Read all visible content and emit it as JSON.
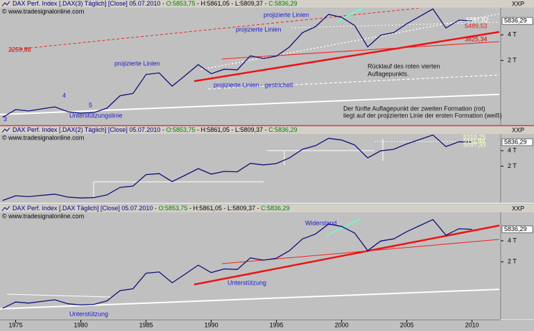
{
  "chart_data": [
    {
      "type": "line",
      "title": "DAX Perf. Index [.DAX(3)  Täglich] [Close] 05.07.2010",
      "quote": [
        "O:5853,75",
        "H:5861,05",
        "L:5809,37",
        "C:5836,29"
      ],
      "subtitle": "© www.tradesignalonline.com",
      "axis_label": "XXP",
      "log_scale": true,
      "x": [
        1974,
        1975,
        1976,
        1977,
        1978,
        1979,
        1980,
        1981,
        1982,
        1983,
        1984,
        1985,
        1986,
        1987,
        1988,
        1989,
        1990,
        1991,
        1992,
        1993,
        1994,
        1995,
        1996,
        1997,
        1998,
        1999,
        2000,
        2001,
        2002,
        2003,
        2004,
        2005,
        2006,
        2007,
        2008,
        2009,
        2010
      ],
      "series": [
        {
          "name": "DAX",
          "color": "#0c0c7a",
          "values": [
            430,
            530,
            510,
            540,
            570,
            500,
            480,
            490,
            550,
            770,
            820,
            1370,
            1430,
            1000,
            1330,
            1790,
            1400,
            1580,
            1550,
            2270,
            2110,
            2250,
            2890,
            4250,
            5000,
            6960,
            6430,
            5160,
            2890,
            3970,
            4260,
            5410,
            6600,
            8070,
            4810,
            5960,
            5836.29
          ]
        }
      ],
      "last_value": {
        "value": 5836.29,
        "label": "5836,29"
      },
      "xlim": [
        1973.8,
        2012.2
      ],
      "ylim": [
        350,
        8200
      ],
      "yticks": [
        {
          "value": 2000,
          "label": "2 T"
        },
        {
          "value": 4000,
          "label": "4 T"
        }
      ],
      "annotations": [
        "projizierte Linien",
        "projizierte Linien",
        "projizierte Linien",
        "2259,88",
        "projizierte Linien - gestrichelt",
        "Unterstützungslinie",
        "3",
        "4",
        "5",
        "5597,82",
        "5489,53",
        "3825,34",
        "Rücklauf des roten vierten",
        "Auflagepunkts.",
        "Der fünfte Auflagepunkt der zweiten Formation (rot)",
        "liegt auf der projizierten Linie der ersten Formation (weiß)"
      ]
    },
    {
      "type": "line",
      "title": "DAX Perf. Index [.DAX(2)  Täglich] [Close] 05.07.2010",
      "quote": [
        "O:5853,75",
        "H:5861,05",
        "L:5809,37",
        "C:5836,29"
      ],
      "subtitle": "© www.tradesignalonline.com",
      "axis_label": "XXP",
      "log_scale": true,
      "x": [
        1974,
        1975,
        1976,
        1977,
        1978,
        1979,
        1980,
        1981,
        1982,
        1983,
        1984,
        1985,
        1986,
        1987,
        1988,
        1989,
        1990,
        1991,
        1992,
        1993,
        1994,
        1995,
        1996,
        1997,
        1998,
        1999,
        2000,
        2001,
        2002,
        2003,
        2004,
        2005,
        2006,
        2007,
        2008,
        2009,
        2010
      ],
      "series": [
        {
          "name": "DAX",
          "color": "#0c0c7a",
          "values": [
            430,
            530,
            510,
            540,
            570,
            500,
            480,
            490,
            550,
            770,
            820,
            1370,
            1430,
            1000,
            1330,
            1790,
            1400,
            1580,
            1550,
            2270,
            2110,
            2250,
            2890,
            4250,
            5000,
            6960,
            6430,
            5160,
            2890,
            3970,
            4260,
            5410,
            6600,
            8070,
            4810,
            5960,
            5836.29
          ]
        }
      ],
      "last_value": {
        "value": 5836.29,
        "label": "5836,29"
      },
      "xlim": [
        1973.8,
        2012.2
      ],
      "ylim": [
        390,
        8200
      ],
      "yticks": [
        {
          "value": 2000,
          "label": "2 T"
        },
        {
          "value": 4000,
          "label": "4 T"
        }
      ],
      "annotations": [
        "5315,25",
        "5111,98",
        "5097,33"
      ]
    },
    {
      "type": "line",
      "title": "DAX Perf. Index [.DAX  Täglich] [Close] 05.07.2010",
      "quote": [
        "O:5853,75",
        "H:5861,05",
        "L:5809,37",
        "C:5836,29"
      ],
      "subtitle": "© www.tradesignalonline.com",
      "axis_label": "XXP",
      "log_scale": true,
      "x": [
        1974,
        1975,
        1976,
        1977,
        1978,
        1979,
        1980,
        1981,
        1982,
        1983,
        1984,
        1985,
        1986,
        1987,
        1988,
        1989,
        1990,
        1991,
        1992,
        1993,
        1994,
        1995,
        1996,
        1997,
        1998,
        1999,
        2000,
        2001,
        2002,
        2003,
        2004,
        2005,
        2006,
        2007,
        2008,
        2009,
        2010
      ],
      "series": [
        {
          "name": "DAX",
          "color": "#0c0c7a",
          "values": [
            430,
            530,
            510,
            540,
            570,
            500,
            480,
            490,
            550,
            770,
            820,
            1370,
            1430,
            1000,
            1330,
            1790,
            1400,
            1580,
            1550,
            2270,
            2110,
            2250,
            2890,
            4250,
            5000,
            6960,
            6430,
            5160,
            2890,
            3970,
            4260,
            5410,
            6600,
            8070,
            4810,
            5960,
            5836.29
          ]
        }
      ],
      "last_value": {
        "value": 5836.29,
        "label": "5836,29"
      },
      "xlim": [
        1973.8,
        2012.2
      ],
      "ylim": [
        300,
        10000
      ],
      "yticks": [
        {
          "value": 2000,
          "label": "2 T"
        },
        {
          "value": 4000,
          "label": "4 T"
        }
      ],
      "xticks": [
        1975,
        1980,
        1985,
        1990,
        1995,
        2000,
        2005,
        2010
      ],
      "annotations": [
        "Widerstand",
        "Unterstützung",
        "Unterstützung"
      ]
    }
  ]
}
